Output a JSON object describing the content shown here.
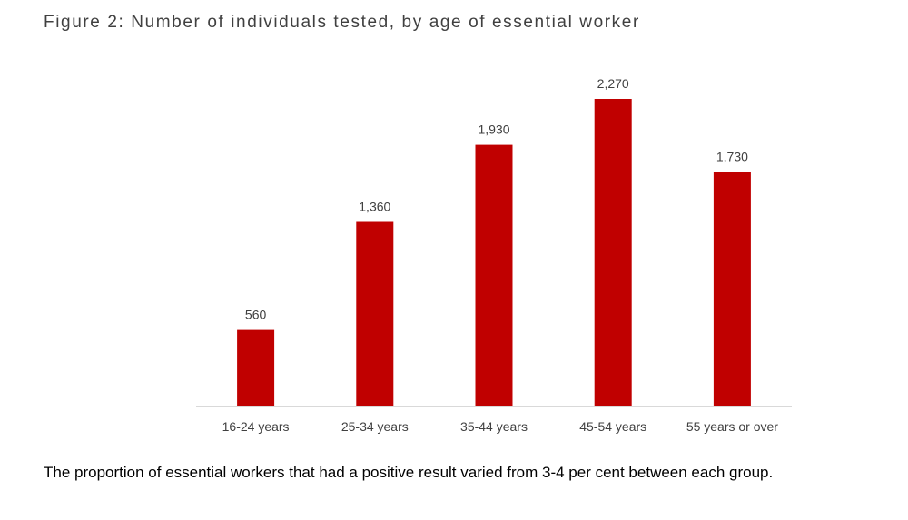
{
  "title": "Figure 2: Number of individuals tested, by age of essential worker",
  "note": "The proportion of essential workers that had a positive result varied from 3-4 per cent between each group.",
  "colors": {
    "bar": "#c00000",
    "axis": "#d9d9d9",
    "label_text": "#404040"
  },
  "chart_data": {
    "type": "bar",
    "categories": [
      "16-24 years",
      "25-34 years",
      "35-44 years",
      "45-54 years",
      "55 years or over"
    ],
    "values": [
      560,
      1360,
      1930,
      2270,
      1730
    ],
    "data_labels": [
      "560",
      "1,360",
      "1,930",
      "2,270",
      "1,730"
    ],
    "ylim": [
      0,
      2270
    ],
    "grid": false,
    "legend": "none"
  }
}
